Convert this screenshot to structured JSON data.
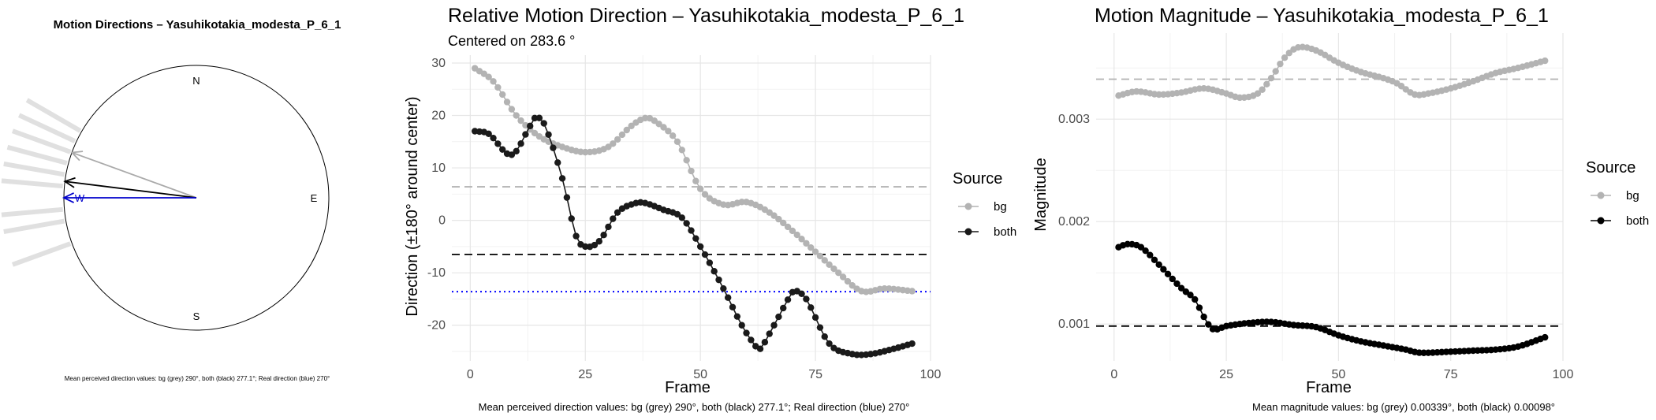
{
  "chart_data": [
    {
      "type": "compass",
      "title": "Motion Directions – Yasuhikotakia_modesta_P_6_1",
      "cardinals": {
        "n": "N",
        "e": "E",
        "s": "S",
        "w": "W"
      },
      "arrows": [
        {
          "label": "bg",
          "direction_deg": 290,
          "color": "#aaaaaa"
        },
        {
          "label": "both",
          "direction_deg": 277.1,
          "color": "#000000"
        },
        {
          "label": "real",
          "direction_deg": 270,
          "color": "#0000cc"
        }
      ],
      "rays_deg": [
        300,
        295,
        290,
        285,
        280,
        275,
        265,
        260,
        250
      ],
      "caption": "Mean perceived direction values: bg (grey) 290°, both (black) 277.1°; Real direction (blue) 270°"
    },
    {
      "type": "line",
      "title": "Relative Motion Direction – Yasuhikotakia_modesta_P_6_1",
      "subtitle": "Centered on  283.6 °",
      "xlabel": "Frame",
      "ylabel": "Direction (±180° around center)",
      "xlim": [
        -4,
        100
      ],
      "ylim": [
        -26.8,
        31.5
      ],
      "xticks": [
        0,
        25,
        50,
        75,
        100
      ],
      "yticks": [
        30,
        20,
        10,
        0,
        -10,
        -20
      ],
      "ytick_labels": [
        "30",
        "20",
        "10",
        "0",
        "-10",
        "-20"
      ],
      "legend_title": "Source",
      "series": [
        {
          "name": "bg",
          "color": "#b3b3b3",
          "x": [
            1,
            5,
            10,
            15,
            20,
            25,
            30,
            35,
            38,
            40,
            45,
            50,
            55,
            60,
            65,
            70,
            75,
            80,
            85,
            90,
            96
          ],
          "y": [
            29,
            26.5,
            20,
            16,
            14,
            13,
            14,
            18,
            19.5,
            19,
            15,
            6,
            3,
            3.5,
            1.5,
            -2,
            -6,
            -10,
            -13.5,
            -13,
            -13.5
          ]
        },
        {
          "name": "both",
          "color": "#1a1a1a",
          "x": [
            1,
            4,
            9,
            13,
            14,
            16,
            20,
            23,
            25,
            28,
            32,
            36,
            38,
            42,
            46,
            50,
            55,
            59,
            62,
            63,
            66,
            70,
            71,
            73,
            78,
            83,
            87,
            92,
            96
          ],
          "y": [
            17,
            16.5,
            12.5,
            18,
            19.5,
            18.5,
            8,
            -3,
            -5,
            -4,
            1.5,
            3.3,
            3.3,
            2,
            0.5,
            -5,
            -13,
            -20,
            -24,
            -24.5,
            -20,
            -13.7,
            -13.5,
            -15,
            -23.5,
            -25.5,
            -25.5,
            -24.5,
            -23.5
          ]
        }
      ],
      "hlines": [
        {
          "label": "bg mean",
          "y": 6.4,
          "color": "#b3b3b3",
          "style": "dashed"
        },
        {
          "label": "both mean",
          "y": -6.5,
          "color": "#000000",
          "style": "dashed"
        },
        {
          "label": "real",
          "y": -13.6,
          "color": "#0000ff",
          "style": "dotted"
        }
      ],
      "caption": "Mean perceived direction values: bg (grey) 290°, both (black) 277.1°; Real direction (blue) 270°"
    },
    {
      "type": "line",
      "title": "Motion Magnitude – Yasuhikotakia_modesta_P_6_1",
      "xlabel": "Frame",
      "ylabel": "Magnitude",
      "xlim": [
        -4,
        100
      ],
      "ylim": [
        0.00064,
        0.00384
      ],
      "xticks": [
        0,
        25,
        50,
        75,
        100
      ],
      "yticks": [
        0.001,
        0.002,
        0.003
      ],
      "ytick_labels": [
        "0.001",
        "0.002",
        "0.003"
      ],
      "legend_title": "Source",
      "series": [
        {
          "name": "bg",
          "color": "#b3b3b3",
          "x": [
            1,
            5,
            10,
            15,
            20,
            25,
            28,
            32,
            35,
            38,
            41,
            45,
            50,
            55,
            60,
            63,
            67,
            70,
            75,
            80,
            85,
            90,
            96
          ],
          "y": [
            0.00323,
            0.00327,
            0.00324,
            0.00326,
            0.0033,
            0.00325,
            0.00321,
            0.00325,
            0.0034,
            0.0036,
            0.0037,
            0.00367,
            0.00355,
            0.00346,
            0.0034,
            0.00335,
            0.00324,
            0.00325,
            0.0033,
            0.00337,
            0.00345,
            0.0035,
            0.00357
          ]
        },
        {
          "name": "both",
          "color": "#000000",
          "x": [
            1,
            3,
            6,
            10,
            15,
            18,
            20,
            22,
            25,
            30,
            35,
            40,
            45,
            50,
            55,
            60,
            65,
            68,
            75,
            80,
            85,
            90,
            96
          ],
          "y": [
            0.00175,
            0.00178,
            0.00175,
            0.00158,
            0.00135,
            0.00124,
            0.00107,
            0.00095,
            0.00098,
            0.00101,
            0.00102,
            0.00099,
            0.00097,
            0.00089,
            0.00083,
            0.00079,
            0.00075,
            0.00072,
            0.00073,
            0.00074,
            0.00075,
            0.00078,
            0.00087
          ]
        }
      ],
      "hlines": [
        {
          "label": "bg mean",
          "y": 0.00339,
          "color": "#b3b3b3",
          "style": "dashed"
        },
        {
          "label": "both mean",
          "y": 0.00098,
          "color": "#000000",
          "style": "dashed"
        }
      ],
      "caption": "Mean magnitude values: bg (grey) 0.00339°, both (black) 0.00098°"
    }
  ]
}
